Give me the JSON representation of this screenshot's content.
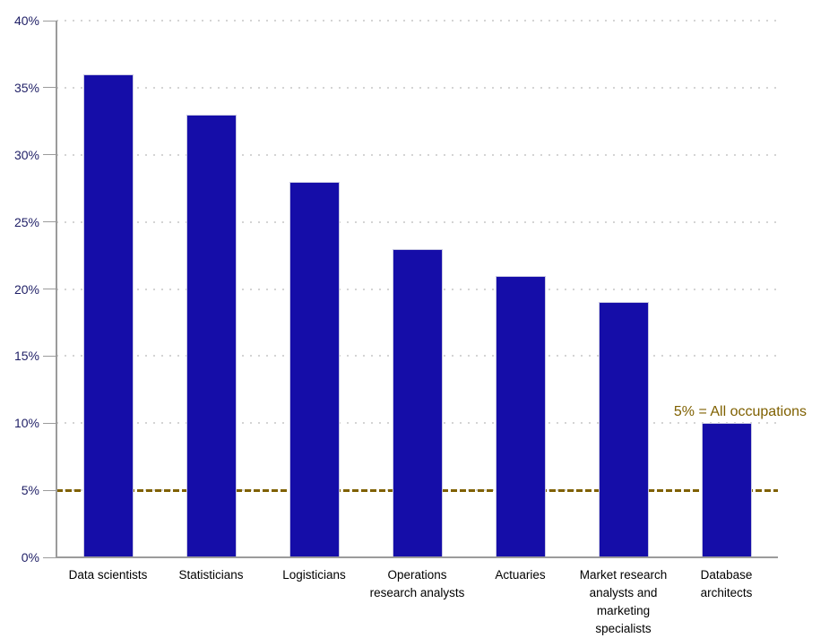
{
  "chart_data": {
    "type": "bar",
    "title": "",
    "categories": [
      "Data scientists",
      "Statisticians",
      "Logisticians",
      "Operations research analysts",
      "Actuaries",
      "Market research analysts and marketing specialists",
      "Database architects"
    ],
    "category_label_lines": [
      [
        "Data scientists"
      ],
      [
        "Statisticians"
      ],
      [
        "Logisticians"
      ],
      [
        "Operations",
        "research analysts"
      ],
      [
        "Actuaries"
      ],
      [
        "Market research",
        "analysts and",
        "marketing",
        "specialists"
      ],
      [
        "Database",
        "architects"
      ]
    ],
    "values": [
      36,
      33,
      28,
      23,
      21,
      19,
      10
    ],
    "unit": "%",
    "xlabel": "",
    "ylabel": "",
    "ylim": [
      0,
      40
    ],
    "ytick_step": 5,
    "ytick_labels": [
      "0%",
      "5%",
      "10%",
      "15%",
      "20%",
      "25%",
      "30%",
      "35%",
      "40%"
    ],
    "grid": "horizontal-dotted",
    "legend": "none",
    "reference_line": {
      "value": 5,
      "label": "5% = All occupations",
      "style": "dashed"
    },
    "colors": {
      "bar_fill": "#150DA8",
      "bar_border": "#c9c9e2",
      "reference_line": "#7F6000",
      "annotation_text": "#7F6000",
      "gridline": "#d4d4d4",
      "axis_line": "#9b9b9b",
      "ytick_label": "#1f1f66",
      "xtick_label": "#000000",
      "background": "#ffffff"
    }
  }
}
